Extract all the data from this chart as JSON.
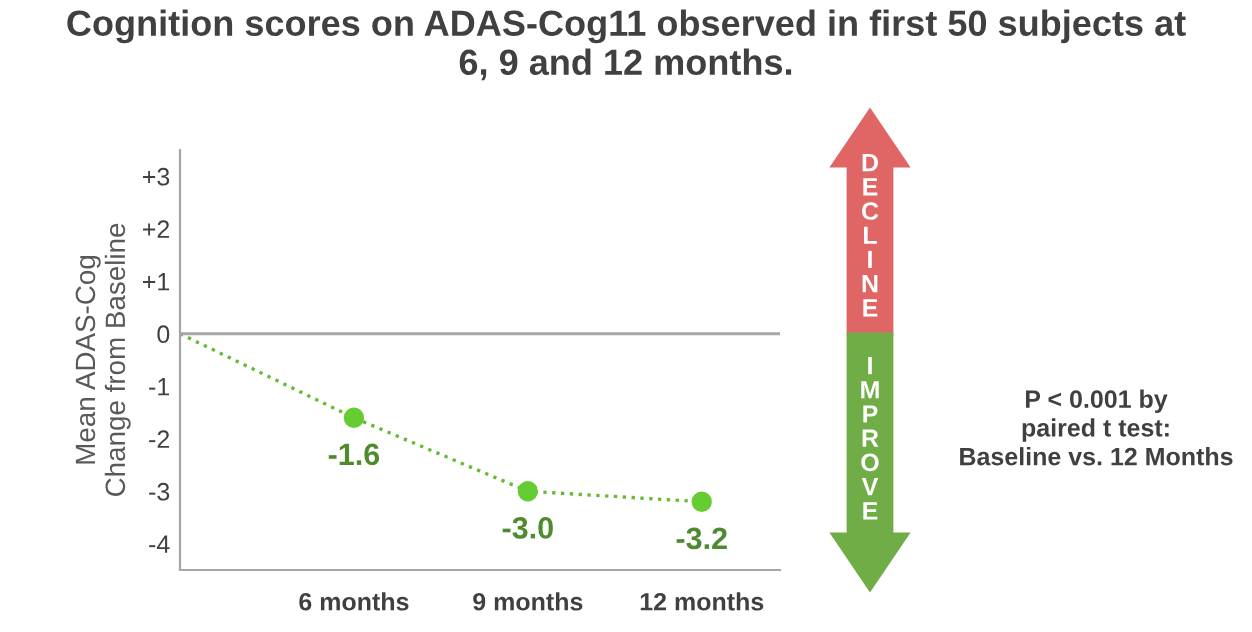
{
  "chart_data": {
    "type": "line",
    "title": "Cognition scores on ADAS-Cog11 observed in first 50 subjects at\n6, 9 and 12 months.",
    "ylabel": "Mean ADAS-Cog\nChange from Baseline",
    "categories": [
      null,
      "6 months",
      "9 months",
      "12 months"
    ],
    "series": [
      {
        "color": "#66bb33",
        "line_style": "dotted",
        "marker": "none",
        "values": [
          0,
          -1.6,
          -3.0,
          -3.2
        ]
      },
      {
        "type": "scatter",
        "color": "#66cc33",
        "marker": "circle",
        "values": [
          null,
          -1.6,
          -3.0,
          -3.2
        ],
        "value_labels": [
          null,
          "-1.6",
          "-3.0",
          "-3.2"
        ]
      }
    ],
    "ylim": [
      -4.5,
      3.5
    ],
    "yticks": [
      {
        "value": 3,
        "label": "+3"
      },
      {
        "value": 2,
        "label": "+2"
      },
      {
        "value": 1,
        "label": "+1"
      },
      0,
      -1,
      -2,
      -3,
      -4
    ],
    "ref_lines": [
      {
        "axis": "y",
        "value": 0,
        "color": "#a6a6a6"
      }
    ],
    "annotations": [
      "DECLINE",
      "IMPROVE",
      "P < 0.001 by\npaired t test:\nBaseline vs. 12 Months"
    ],
    "grid": false,
    "legend": false
  }
}
